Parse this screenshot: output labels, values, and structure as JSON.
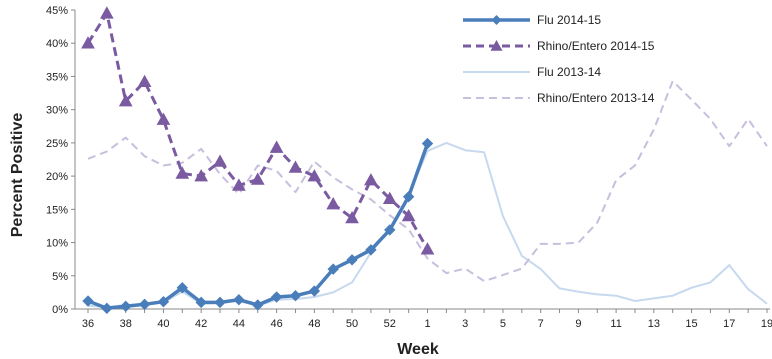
{
  "chart_data": {
    "type": "line",
    "title": "",
    "xlabel": "Week",
    "ylabel": "Percent Positive",
    "ylim": [
      0,
      45
    ],
    "yticks": [
      "0%",
      "5%",
      "10%",
      "15%",
      "20%",
      "25%",
      "30%",
      "35%",
      "40%",
      "45%"
    ],
    "categories": [
      "36",
      "37",
      "38",
      "39",
      "40",
      "41",
      "42",
      "43",
      "44",
      "45",
      "46",
      "47",
      "48",
      "49",
      "50",
      "51",
      "52",
      "53",
      "1",
      "2",
      "3",
      "4",
      "5",
      "6",
      "7",
      "8",
      "9",
      "10",
      "11",
      "12",
      "13",
      "14",
      "15",
      "16",
      "17",
      "18",
      "19"
    ],
    "xtick_labels": [
      "36",
      "38",
      "40",
      "42",
      "44",
      "46",
      "48",
      "50",
      "52",
      "1",
      "3",
      "5",
      "7",
      "9",
      "11",
      "13",
      "15",
      "17",
      "19"
    ],
    "grid": false,
    "legend_position": "top-right",
    "series": [
      {
        "name": "Flu 2014-15",
        "color": "#4a7ebb",
        "style": "solid-thick",
        "marker": "diamond",
        "values": [
          1.2,
          0.1,
          0.4,
          0.7,
          1.1,
          3.2,
          1.0,
          1.0,
          1.4,
          0.6,
          1.8,
          2.0,
          2.7,
          6.0,
          7.4,
          8.9,
          11.9,
          16.9,
          24.9,
          null,
          null,
          null,
          null,
          null,
          null,
          null,
          null,
          null,
          null,
          null,
          null,
          null,
          null,
          null,
          null,
          null,
          null
        ]
      },
      {
        "name": "Rhino/Entero 2014-15",
        "color": "#7a5aa0",
        "style": "dashed",
        "marker": "triangle",
        "values": [
          40,
          44.5,
          31.3,
          34.2,
          28.5,
          20.4,
          20.0,
          22.2,
          18.6,
          19.5,
          24.3,
          21.3,
          20.0,
          15.8,
          13.7,
          19.4,
          16.6,
          14.0,
          9.0,
          null,
          null,
          null,
          null,
          null,
          null,
          null,
          null,
          null,
          null,
          null,
          null,
          null,
          null,
          null,
          null,
          null,
          null
        ]
      },
      {
        "name": "Flu 2013-14",
        "color": "#c6d9ee",
        "style": "solid-thin",
        "marker": "none",
        "values": [
          0.5,
          0.3,
          0.6,
          0.7,
          1.0,
          2.6,
          0.8,
          0.9,
          1.2,
          0.5,
          1.4,
          1.5,
          1.8,
          2.5,
          4.0,
          8.5,
          12.0,
          17.2,
          23.8,
          25.0,
          23.9,
          23.6,
          14.0,
          8.0,
          6.0,
          3.1,
          2.6,
          2.2,
          2.0,
          1.2,
          1.6,
          2.0,
          3.2,
          4.0,
          6.6,
          3.0,
          0.8
        ]
      },
      {
        "name": "Rhino/Entero 2013-14",
        "color": "#c8bedd",
        "style": "dashed",
        "marker": "none",
        "values": [
          22.6,
          23.7,
          25.8,
          23.0,
          21.6,
          22.0,
          24.1,
          20.3,
          17.3,
          21.6,
          20.8,
          17.6,
          22.2,
          19.8,
          18.0,
          16.5,
          14.1,
          12.0,
          7.6,
          5.4,
          6.1,
          4.2,
          5.1,
          6.1,
          9.8,
          9.8,
          10.0,
          13.0,
          19.4,
          21.6,
          27.0,
          34.3,
          31.5,
          28.6,
          24.5,
          28.6,
          24.5
        ]
      }
    ]
  }
}
